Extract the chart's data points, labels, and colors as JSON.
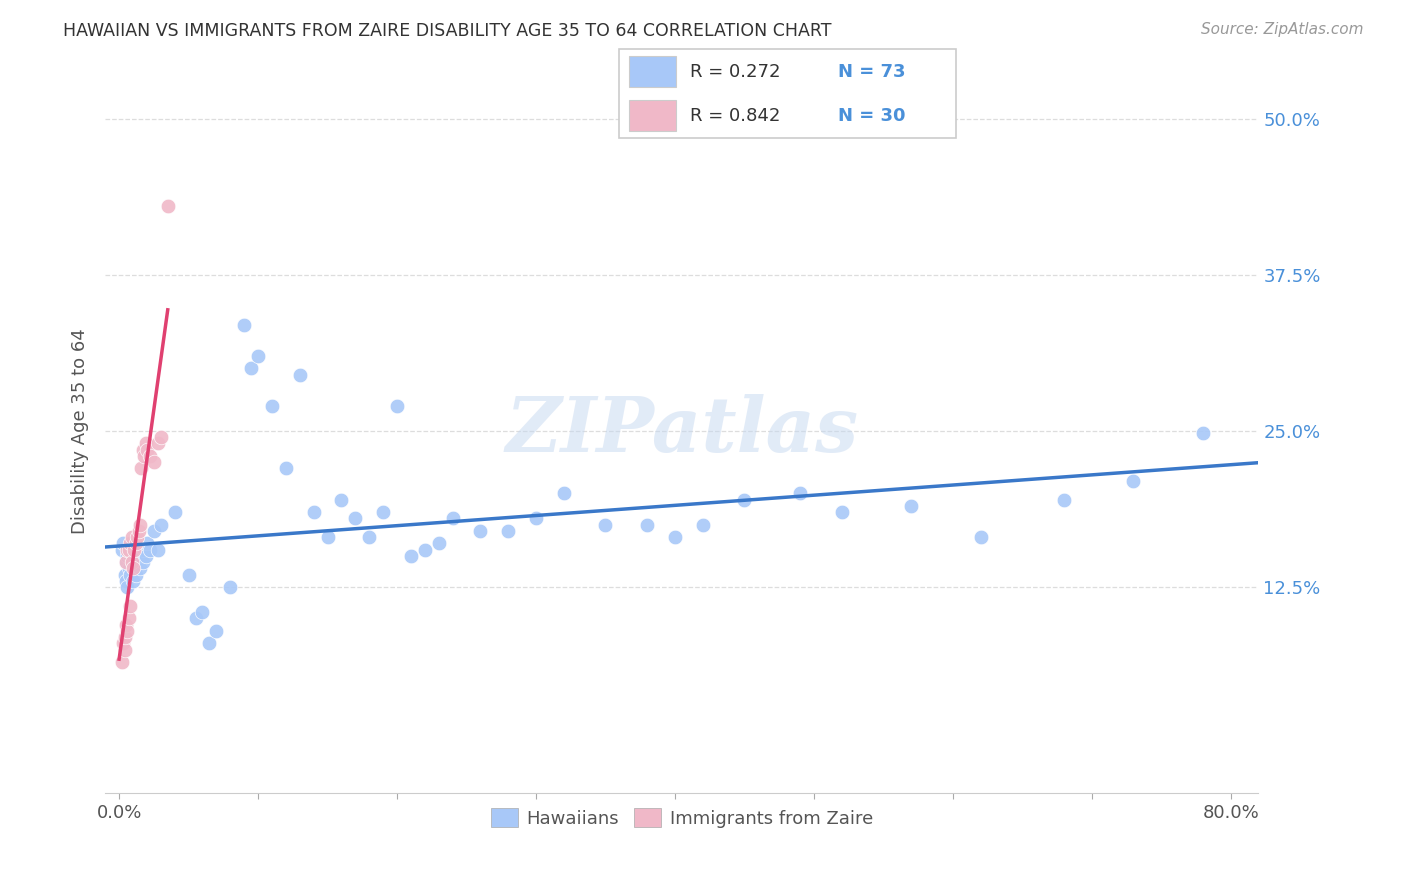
{
  "title": "HAWAIIAN VS IMMIGRANTS FROM ZAIRE DISABILITY AGE 35 TO 64 CORRELATION CHART",
  "source": "Source: ZipAtlas.com",
  "ylabel": "Disability Age 35 to 64",
  "watermark": "ZIPatlas",
  "blue_scatter_color": "#a8c8f8",
  "pink_scatter_color": "#f0b8c8",
  "blue_line_color": "#3a78c9",
  "pink_line_color": "#e04070",
  "right_tick_color": "#4a90d9",
  "legend_text_color": "#4a90d9",
  "grid_color": "#dddddd",
  "title_color": "#333333",
  "source_color": "#999999",
  "ylabel_color": "#555555",
  "xtick_color": "#555555",
  "hawaiians_x": [
    0.002,
    0.003,
    0.004,
    0.005,
    0.005,
    0.006,
    0.006,
    0.007,
    0.007,
    0.008,
    0.008,
    0.009,
    0.009,
    0.01,
    0.01,
    0.011,
    0.011,
    0.012,
    0.012,
    0.013,
    0.013,
    0.014,
    0.015,
    0.015,
    0.016,
    0.017,
    0.018,
    0.019,
    0.02,
    0.022,
    0.025,
    0.028,
    0.03,
    0.04,
    0.05,
    0.055,
    0.06,
    0.065,
    0.07,
    0.08,
    0.09,
    0.095,
    0.1,
    0.11,
    0.12,
    0.13,
    0.14,
    0.15,
    0.16,
    0.17,
    0.18,
    0.19,
    0.2,
    0.21,
    0.22,
    0.23,
    0.24,
    0.26,
    0.28,
    0.3,
    0.32,
    0.35,
    0.38,
    0.4,
    0.42,
    0.45,
    0.49,
    0.52,
    0.57,
    0.62,
    0.68,
    0.73,
    0.78
  ],
  "hawaiians_y": [
    0.155,
    0.16,
    0.135,
    0.13,
    0.145,
    0.125,
    0.15,
    0.14,
    0.155,
    0.135,
    0.15,
    0.145,
    0.16,
    0.13,
    0.145,
    0.14,
    0.155,
    0.135,
    0.145,
    0.15,
    0.155,
    0.145,
    0.14,
    0.155,
    0.15,
    0.145,
    0.155,
    0.15,
    0.16,
    0.155,
    0.17,
    0.155,
    0.175,
    0.185,
    0.135,
    0.1,
    0.105,
    0.08,
    0.09,
    0.125,
    0.335,
    0.3,
    0.31,
    0.27,
    0.22,
    0.295,
    0.185,
    0.165,
    0.195,
    0.18,
    0.165,
    0.185,
    0.27,
    0.15,
    0.155,
    0.16,
    0.18,
    0.17,
    0.17,
    0.18,
    0.2,
    0.175,
    0.175,
    0.165,
    0.175,
    0.195,
    0.2,
    0.185,
    0.19,
    0.165,
    0.195,
    0.21,
    0.248
  ],
  "zaire_x": [
    0.002,
    0.003,
    0.004,
    0.004,
    0.005,
    0.005,
    0.006,
    0.006,
    0.007,
    0.007,
    0.008,
    0.008,
    0.009,
    0.009,
    0.01,
    0.011,
    0.012,
    0.013,
    0.014,
    0.015,
    0.016,
    0.017,
    0.018,
    0.019,
    0.02,
    0.022,
    0.025,
    0.028,
    0.03,
    0.035
  ],
  "zaire_y": [
    0.065,
    0.08,
    0.075,
    0.085,
    0.095,
    0.145,
    0.09,
    0.155,
    0.1,
    0.155,
    0.11,
    0.16,
    0.145,
    0.165,
    0.14,
    0.155,
    0.16,
    0.165,
    0.17,
    0.175,
    0.22,
    0.235,
    0.23,
    0.24,
    0.235,
    0.23,
    0.225,
    0.24,
    0.245,
    0.43
  ],
  "xlim": [
    -0.01,
    0.82
  ],
  "ylim": [
    -0.04,
    0.54
  ],
  "ytick_values": [
    0.125,
    0.25,
    0.375,
    0.5
  ],
  "ytick_labels": [
    "12.5%",
    "25.0%",
    "37.5%",
    "50.0%"
  ],
  "xtick_values": [
    0.0,
    0.1,
    0.2,
    0.3,
    0.4,
    0.5,
    0.6,
    0.7,
    0.8
  ],
  "xtick_labels": [
    "0.0%",
    "",
    "",
    "",
    "",
    "",
    "",
    "",
    "80.0%"
  ]
}
